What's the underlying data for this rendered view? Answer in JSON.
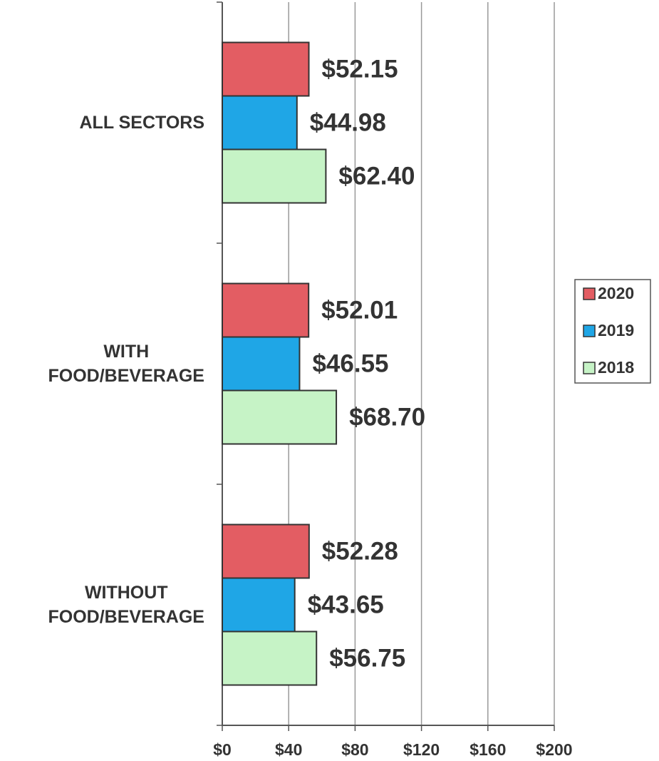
{
  "chart_data": {
    "type": "bar",
    "orientation": "horizontal",
    "categories": [
      "ALL SECTORS",
      "WITH\nFOOD/BEVERAGE",
      "WITHOUT\nFOOD/BEVERAGE"
    ],
    "series": [
      {
        "name": "2020",
        "color": "#e35d63",
        "values": [
          52.15,
          52.01,
          52.28
        ],
        "value_labels": [
          "$52.15",
          "$52.01",
          "$52.28"
        ]
      },
      {
        "name": "2019",
        "color": "#1fa6e6",
        "values": [
          44.98,
          46.55,
          43.65
        ],
        "value_labels": [
          "$44.98",
          "$46.55",
          "$43.65"
        ]
      },
      {
        "name": "2018",
        "color": "#c6f3c6",
        "values": [
          62.4,
          68.7,
          56.75
        ],
        "value_labels": [
          "$62.40",
          "$68.70",
          "$56.75"
        ]
      }
    ],
    "xlim": [
      0,
      200
    ],
    "xticks": [
      {
        "value": 0,
        "label": "$0"
      },
      {
        "value": 40,
        "label": "$40"
      },
      {
        "value": 80,
        "label": "$80"
      },
      {
        "value": 120,
        "label": "$120"
      },
      {
        "value": 160,
        "label": "$160"
      },
      {
        "value": 200,
        "label": "$200"
      }
    ],
    "grid": true,
    "legend": "right"
  }
}
